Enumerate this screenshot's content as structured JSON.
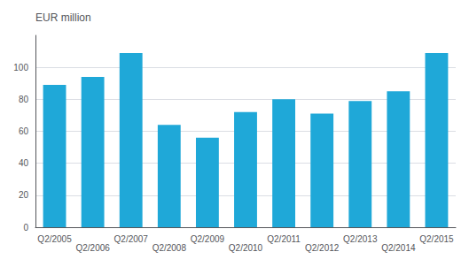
{
  "chart_data": {
    "type": "bar",
    "ylabel": "EUR million",
    "categories": [
      "Q2/2005",
      "Q2/2006",
      "Q2/2007",
      "Q2/2008",
      "Q2/2009",
      "Q2/2010",
      "Q2/2011",
      "Q2/2012",
      "Q2/2013",
      "Q2/2014",
      "Q2/2015"
    ],
    "values": [
      89,
      94,
      109,
      64,
      56,
      72,
      80,
      71,
      79,
      85,
      109
    ],
    "color": "#1fa8d8",
    "ylim": [
      0,
      120
    ],
    "yticks": [
      0,
      20,
      40,
      60,
      80,
      100
    ],
    "grid": true
  }
}
